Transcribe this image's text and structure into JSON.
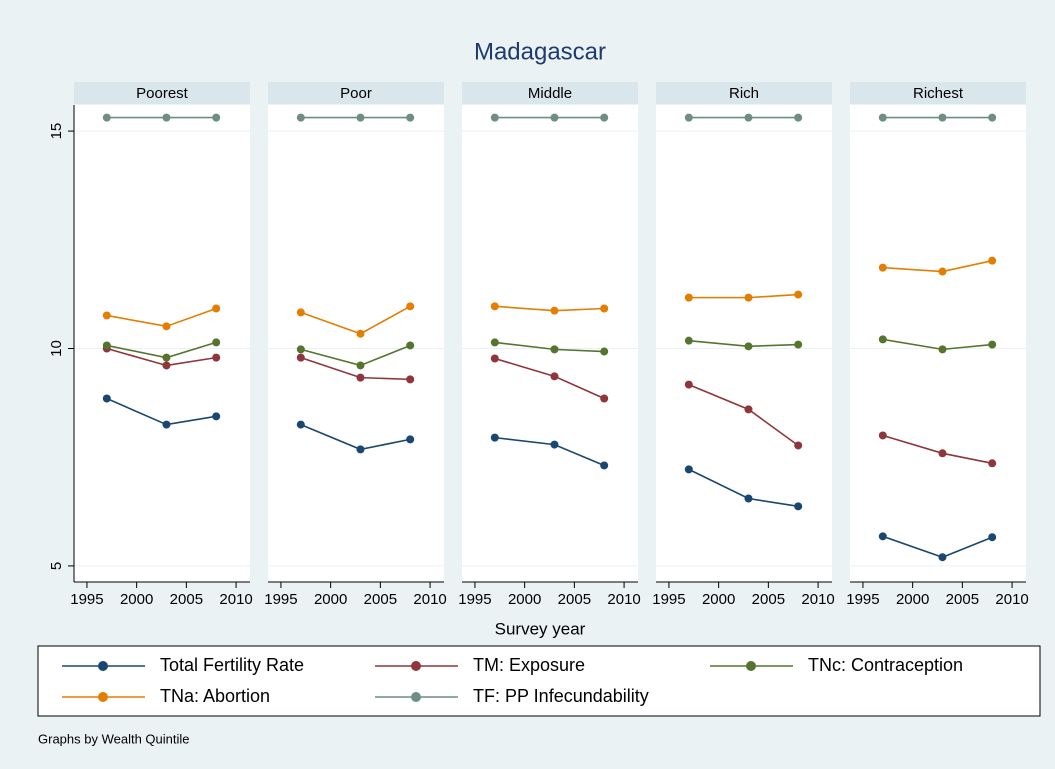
{
  "chart_data": {
    "type": "line",
    "title": "Madagascar",
    "xlabel": "Survey year",
    "note": "Graphs by Wealth Quintile",
    "x": [
      1997,
      2003,
      2008
    ],
    "xlim": [
      1993.7,
      2011.4
    ],
    "xticks": [
      1995,
      2000,
      2005,
      2010
    ],
    "ylim": [
      4.63,
      15.6
    ],
    "yticks": [
      5,
      10,
      15
    ],
    "grid": true,
    "series": [
      {
        "name": "Total Fertility Rate",
        "color": "#1a476f"
      },
      {
        "name": "TM: Exposure",
        "color": "#90353b"
      },
      {
        "name": "TNc: Contraception",
        "color": "#55752f"
      },
      {
        "name": "TNa: Abortion",
        "color": "#e37e00"
      },
      {
        "name": "TF: PP Infecundability",
        "color": "#6e8e84"
      }
    ],
    "panels": [
      {
        "label": "Poorest",
        "values": [
          [
            8.85,
            8.25,
            8.44
          ],
          [
            10.0,
            9.61,
            9.79
          ],
          [
            10.07,
            9.79,
            10.14
          ],
          [
            10.76,
            10.51,
            10.92
          ],
          [
            15.31,
            15.31,
            15.31
          ]
        ]
      },
      {
        "label": "Poor",
        "values": [
          [
            8.25,
            7.68,
            7.91
          ],
          [
            9.79,
            9.33,
            9.29
          ],
          [
            9.98,
            9.61,
            10.07
          ],
          [
            10.83,
            10.34,
            10.97
          ],
          [
            15.31,
            15.31,
            15.31
          ]
        ]
      },
      {
        "label": "Middle",
        "values": [
          [
            7.95,
            7.79,
            7.31
          ],
          [
            9.77,
            9.36,
            8.85
          ],
          [
            10.14,
            9.98,
            9.93
          ],
          [
            10.97,
            10.87,
            10.92
          ],
          [
            15.31,
            15.31,
            15.31
          ]
        ]
      },
      {
        "label": "Rich",
        "values": [
          [
            7.22,
            6.55,
            6.37
          ],
          [
            9.17,
            8.6,
            7.77
          ],
          [
            10.18,
            10.05,
            10.09
          ],
          [
            11.17,
            11.17,
            11.24
          ],
          [
            15.31,
            15.31,
            15.31
          ]
        ]
      },
      {
        "label": "Richest",
        "values": [
          [
            5.68,
            5.2,
            5.66
          ],
          [
            8.0,
            7.59,
            7.36
          ],
          [
            10.21,
            9.98,
            10.09
          ],
          [
            11.86,
            11.77,
            12.02
          ],
          [
            15.31,
            15.31,
            15.31
          ]
        ]
      }
    ]
  }
}
